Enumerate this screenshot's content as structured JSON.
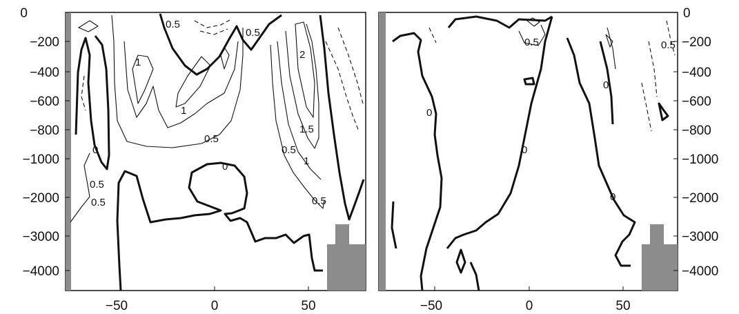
{
  "chart_data": [
    {
      "type": "contour",
      "title": "",
      "xlabel": "",
      "ylabel": "",
      "xlim": [
        -75,
        80
      ],
      "ylim": [
        -4500,
        0
      ],
      "x_ticks": [
        -50,
        0,
        50
      ],
      "y_ticks": [
        0,
        -200,
        -400,
        -600,
        -800,
        -1000,
        -2000,
        -3000,
        -4000
      ],
      "y_axis_side": "left",
      "contour_labels": [
        "0.5",
        "1",
        "0.5",
        "2",
        "1",
        "1.5",
        "1",
        "0.5",
        "0",
        "0",
        "0.5",
        "0.5",
        "0.5",
        "0.5"
      ],
      "bathymetry_fill": "#8c8c8c"
    },
    {
      "type": "contour",
      "title": "",
      "xlabel": "",
      "ylabel": "",
      "xlim": [
        -75,
        80
      ],
      "ylim": [
        -4500,
        0
      ],
      "x_ticks": [
        -50,
        0,
        50
      ],
      "y_ticks": [
        0,
        -200,
        -400,
        -600,
        -800,
        -1000,
        -2000,
        -3000,
        -4000
      ],
      "y_axis_side": "right",
      "contour_labels": [
        "0.5",
        "0.5",
        "0",
        "0",
        "0",
        "0"
      ],
      "bathymetry_fill": "#8c8c8c"
    }
  ]
}
